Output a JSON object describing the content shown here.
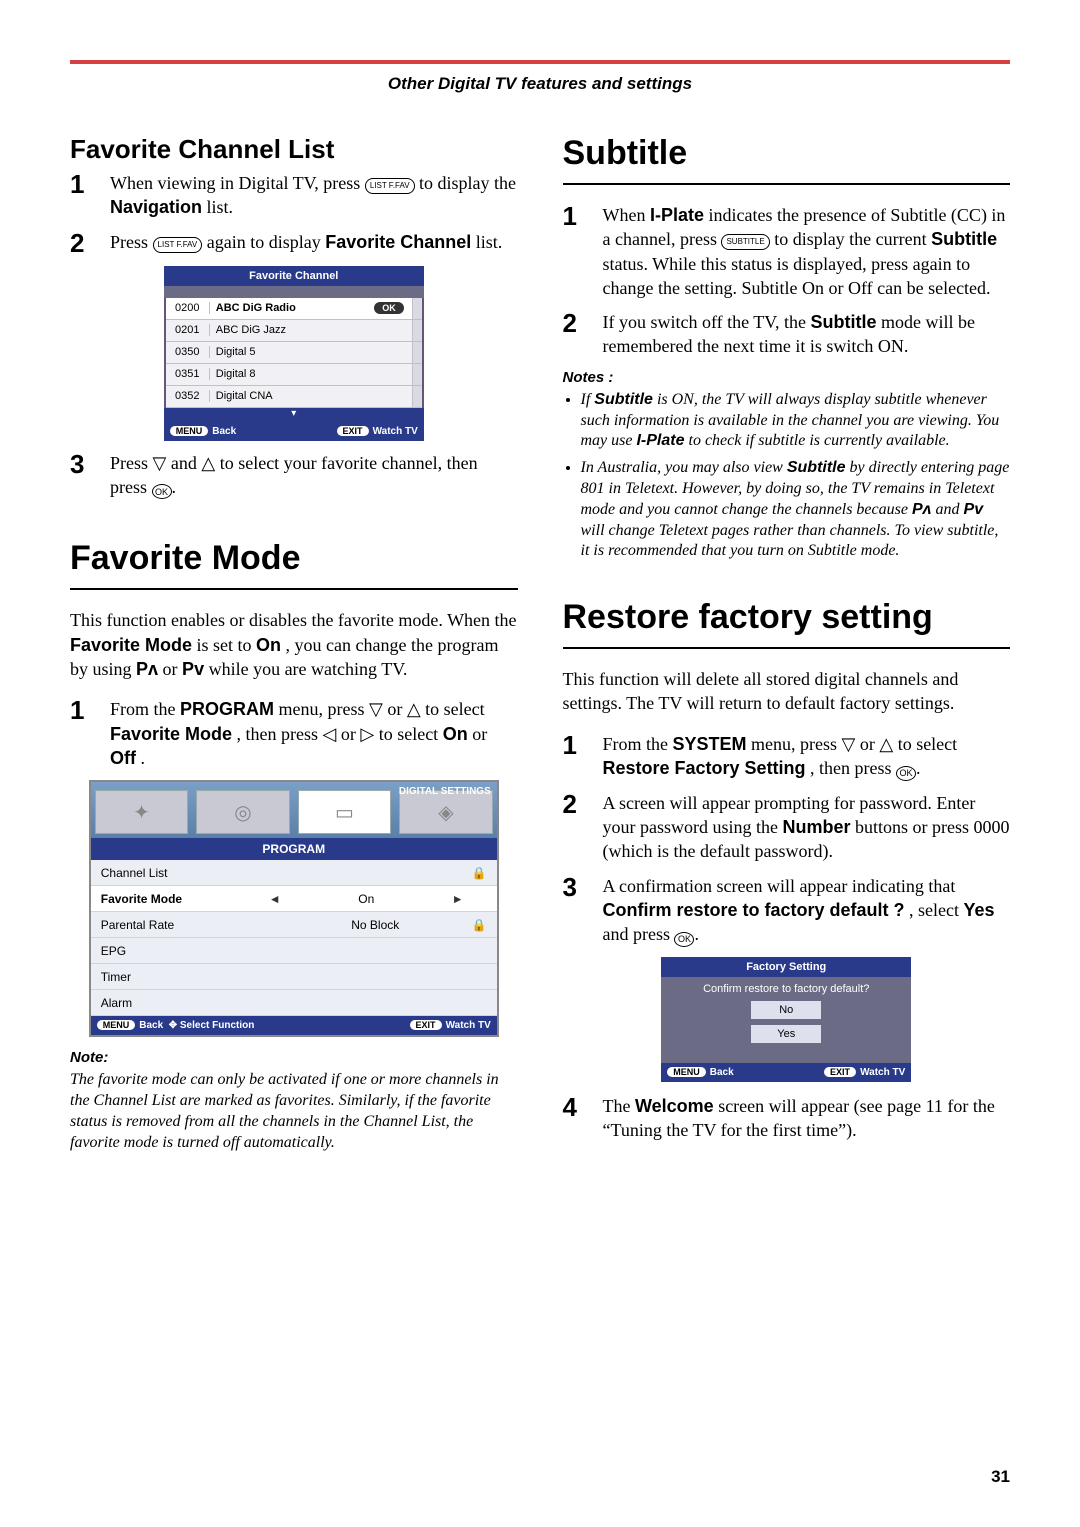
{
  "header": {
    "title": "Other Digital TV features and settings",
    "bar_color": "#d64040"
  },
  "page_number": "31",
  "left": {
    "fav_list": {
      "heading": "Favorite Channel List",
      "steps": {
        "s1": {
          "num": "1",
          "pre": "When viewing in Digital TV, press ",
          "icon": "LIST F.FAV",
          "post": " to display the ",
          "bold": "Navigation",
          "end": " list."
        },
        "s2": {
          "num": "2",
          "pre": "Press ",
          "icon": "LIST F.FAV",
          "post": " again to display ",
          "bold": "Favorite Channel",
          "end": " list."
        },
        "s3": {
          "num": "3",
          "text_a": "Press ",
          "tri_down": "▽",
          "text_b": " and ",
          "tri_up": "△",
          "text_c": " to select your favorite channel, then press ",
          "ok": "OK",
          "end": "."
        }
      },
      "osd": {
        "title": "Favorite Channel",
        "ok_label": "OK",
        "channels": [
          {
            "num": "0200",
            "name": "ABC DiG Radio",
            "selected": true
          },
          {
            "num": "0201",
            "name": "ABC DiG Jazz",
            "selected": false
          },
          {
            "num": "0350",
            "name": "Digital 5",
            "selected": false
          },
          {
            "num": "0351",
            "name": "Digital 8",
            "selected": false
          },
          {
            "num": "0352",
            "name": "Digital CNA",
            "selected": false
          }
        ],
        "foot": {
          "menu": "MENU",
          "back": "Back",
          "exit": "EXIT",
          "watch": "Watch TV"
        }
      }
    },
    "fav_mode": {
      "heading": "Favorite Mode",
      "para_a": "This function enables or disables the favorite mode. When the ",
      "para_bold1": "Favorite Mode",
      "para_b": " is set to ",
      "para_bold2": "On",
      "para_c": ", you can change the program by using ",
      "p_up": "P",
      "para_d": " or ",
      "p_dn": "P",
      "para_e": " while you are watching TV.",
      "step1": {
        "num": "1",
        "a": "From the ",
        "b": "PROGRAM",
        "c": " menu, press ",
        "tri_down": "▽",
        "d": " or ",
        "tri_up": "△",
        "e": " to select ",
        "f": "Favorite Mode",
        "g": ", then press ",
        "tri_l": "◁",
        "h": " or ",
        "tri_r": "▷",
        "i": " to select ",
        "j": "On",
        "k": " or ",
        "l": "Off",
        "m": "."
      },
      "osd": {
        "top_label": "DIGITAL SETTINGS",
        "prog": "PROGRAM",
        "rows": [
          {
            "label": "Channel List",
            "value": "",
            "lock": true,
            "sel": false
          },
          {
            "label": "Favorite Mode",
            "value": "On",
            "lock": false,
            "sel": true
          },
          {
            "label": "Parental Rate",
            "value": "No Block",
            "lock": true,
            "sel": false
          },
          {
            "label": "EPG",
            "value": "",
            "lock": false,
            "sel": false
          },
          {
            "label": "Timer",
            "value": "",
            "lock": false,
            "sel": false
          },
          {
            "label": "Alarm",
            "value": "",
            "lock": false,
            "sel": false
          }
        ],
        "foot": {
          "menu": "MENU",
          "back": "Back",
          "select": "Select Function",
          "exit": "EXIT",
          "watch": "Watch TV"
        }
      },
      "note_head": "Note:",
      "note": "The favorite mode can only be activated if one or more channels in the Channel List are marked as favorites. Similarly, if the favorite status is removed from all the channels in the Channel List, the favorite mode is turned off automatically."
    }
  },
  "right": {
    "subtitle": {
      "heading": "Subtitle",
      "step1": {
        "num": "1",
        "a": "When ",
        "b": "I-Plate",
        "c": " indicates the presence of Subtitle (CC) in a channel, press ",
        "cap": "SUBTITLE",
        "d": " to display the current ",
        "e": "Subtitle",
        "f": " status. While this status is displayed, press again to change the setting. Subtitle On or Off can be selected."
      },
      "step2": {
        "num": "2",
        "a": "If you switch off the TV, the ",
        "b": "Subtitle",
        "c": " mode will be remembered the next time it is switch ON."
      },
      "notes_head": "Notes :",
      "note1_a": "If ",
      "note1_b": "Subtitle",
      "note1_c": " is ON, the TV will always display subtitle whenever such information is available in the channel you are viewing. You may use ",
      "note1_d": "I-Plate",
      "note1_e": " to check if subtitle is currently available.",
      "note2_a": "In Australia, you may also view ",
      "note2_b": "Subtitle",
      "note2_c": " by directly entering page 801 in Teletext. However, by doing so, the TV remains in Teletext mode and you cannot change the channels because  ",
      "note2_p1": "P",
      "note2_d": " and  ",
      "note2_p2": "P",
      "note2_e": " will change Teletext pages rather than channels.  To view subtitle, it is recommended that you turn on Subtitle mode."
    },
    "restore": {
      "heading": "Restore factory setting",
      "para": "This function will delete all stored digital channels and settings. The TV will return to default factory settings.",
      "step1": {
        "num": "1",
        "a": "From the ",
        "b": "SYSTEM",
        "c": " menu, press ",
        "tri_down": "▽",
        "d": " or ",
        "tri_up": "△",
        "e": " to select ",
        "f": "Restore Factory Setting",
        "g": ", then press ",
        "ok": "OK",
        "h": "."
      },
      "step2": {
        "num": "2",
        "a": "A screen will appear prompting for password. Enter your password using the ",
        "b": "Number",
        "c": " buttons or press 0000 (which is the default password)."
      },
      "step3": {
        "num": "3",
        "a": "A confirmation screen will appear indicating that ",
        "b": "Confirm restore to factory default ?",
        "c": ", select ",
        "d": "Yes",
        "e": " and press ",
        "ok": "OK",
        "f": "."
      },
      "osd": {
        "title": "Factory Setting",
        "prompt": "Confirm restore to factory default?",
        "no": "No",
        "yes": "Yes",
        "foot": {
          "menu": "MENU",
          "back": "Back",
          "exit": "EXIT",
          "watch": "Watch TV"
        }
      },
      "step4": {
        "num": "4",
        "a": "The ",
        "b": "Welcome",
        "c": " screen will appear (see page 11 for the “Tuning the TV for the first time”)."
      }
    }
  }
}
